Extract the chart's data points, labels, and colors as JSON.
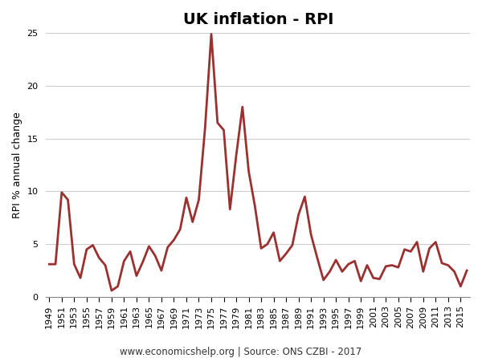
{
  "title": "UK inflation - RPI",
  "ylabel": "RPI % annual change",
  "xlabel_note": "www.economicshelp.org | Source: ONS CZBI - 2017",
  "line_color": "#9B3030",
  "background_color": "#ffffff",
  "grid_color": "#cccccc",
  "years": [
    1949,
    1950,
    1951,
    1952,
    1953,
    1954,
    1955,
    1956,
    1957,
    1958,
    1959,
    1960,
    1961,
    1962,
    1963,
    1964,
    1965,
    1966,
    1967,
    1968,
    1969,
    1970,
    1971,
    1972,
    1973,
    1974,
    1975,
    1976,
    1977,
    1978,
    1979,
    1980,
    1981,
    1982,
    1983,
    1984,
    1985,
    1986,
    1987,
    1988,
    1989,
    1990,
    1991,
    1992,
    1993,
    1994,
    1995,
    1996,
    1997,
    1998,
    1999,
    2000,
    2001,
    2002,
    2003,
    2004,
    2005,
    2006,
    2007,
    2008,
    2009,
    2010,
    2011,
    2012,
    2013,
    2014,
    2015,
    2016
  ],
  "values": [
    3.1,
    3.1,
    9.9,
    9.2,
    3.1,
    1.8,
    4.5,
    4.9,
    3.7,
    3.0,
    0.6,
    1.0,
    3.4,
    4.3,
    2.0,
    3.3,
    4.8,
    3.9,
    2.5,
    4.7,
    5.4,
    6.4,
    9.4,
    7.1,
    9.2,
    16.0,
    24.9,
    16.5,
    15.8,
    8.3,
    13.4,
    18.0,
    11.9,
    8.6,
    4.6,
    5.0,
    6.1,
    3.4,
    4.1,
    4.9,
    7.8,
    9.5,
    5.9,
    3.7,
    1.6,
    2.4,
    3.5,
    2.4,
    3.1,
    3.4,
    1.5,
    3.0,
    1.8,
    1.7,
    2.9,
    3.0,
    2.8,
    4.5,
    4.3,
    5.2,
    2.4,
    4.6,
    5.2,
    3.2,
    3.0,
    2.4,
    1.0,
    2.5
  ],
  "ylim": [
    0,
    25
  ],
  "yticks": [
    0,
    5,
    10,
    15,
    20,
    25
  ],
  "xtick_start": 1949,
  "xtick_end": 2016,
  "xtick_step": 2,
  "title_fontsize": 14,
  "ylabel_fontsize": 9,
  "tick_fontsize": 8,
  "note_fontsize": 8.5,
  "linewidth": 2.0
}
